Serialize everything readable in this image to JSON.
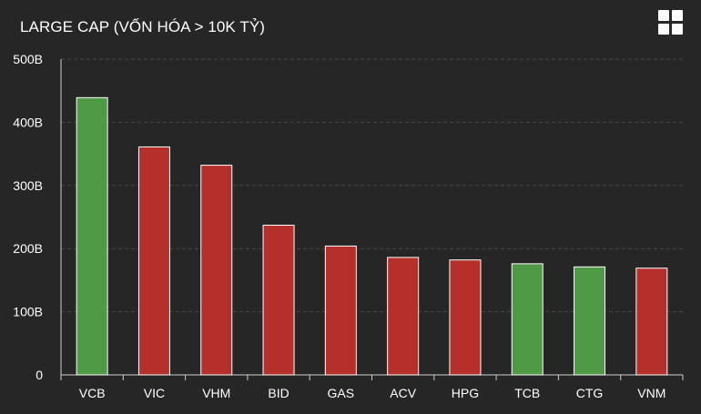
{
  "header": {
    "title": "LARGE CAP (VỐN HÓA > 10K TỶ)",
    "menu_icon": "grid-menu-icon"
  },
  "colors": {
    "up": "#4e9a45",
    "down": "#b5302a",
    "background": "#262626",
    "gridline": "#4a4a4a",
    "axis": "#cfcfcf",
    "text": "#ffffff"
  },
  "chart_data": {
    "type": "bar",
    "title": "LARGE CAP (VỐN HÓA > 10K TỶ)",
    "xlabel": "",
    "ylabel": "",
    "ylim": [
      0,
      500
    ],
    "yticks": [
      0,
      100,
      200,
      300,
      400,
      500
    ],
    "ytick_labels": [
      "0",
      "100B",
      "200B",
      "300B",
      "400B",
      "500B"
    ],
    "grid": true,
    "categories": [
      "VCB",
      "VIC",
      "VHM",
      "BID",
      "GAS",
      "ACV",
      "HPG",
      "TCB",
      "CTG",
      "VNM"
    ],
    "values": [
      439,
      361,
      332,
      237,
      204,
      186,
      182,
      176,
      171,
      169
    ],
    "bar_colors": [
      "up",
      "down",
      "down",
      "down",
      "down",
      "down",
      "down",
      "up",
      "up",
      "down"
    ]
  }
}
